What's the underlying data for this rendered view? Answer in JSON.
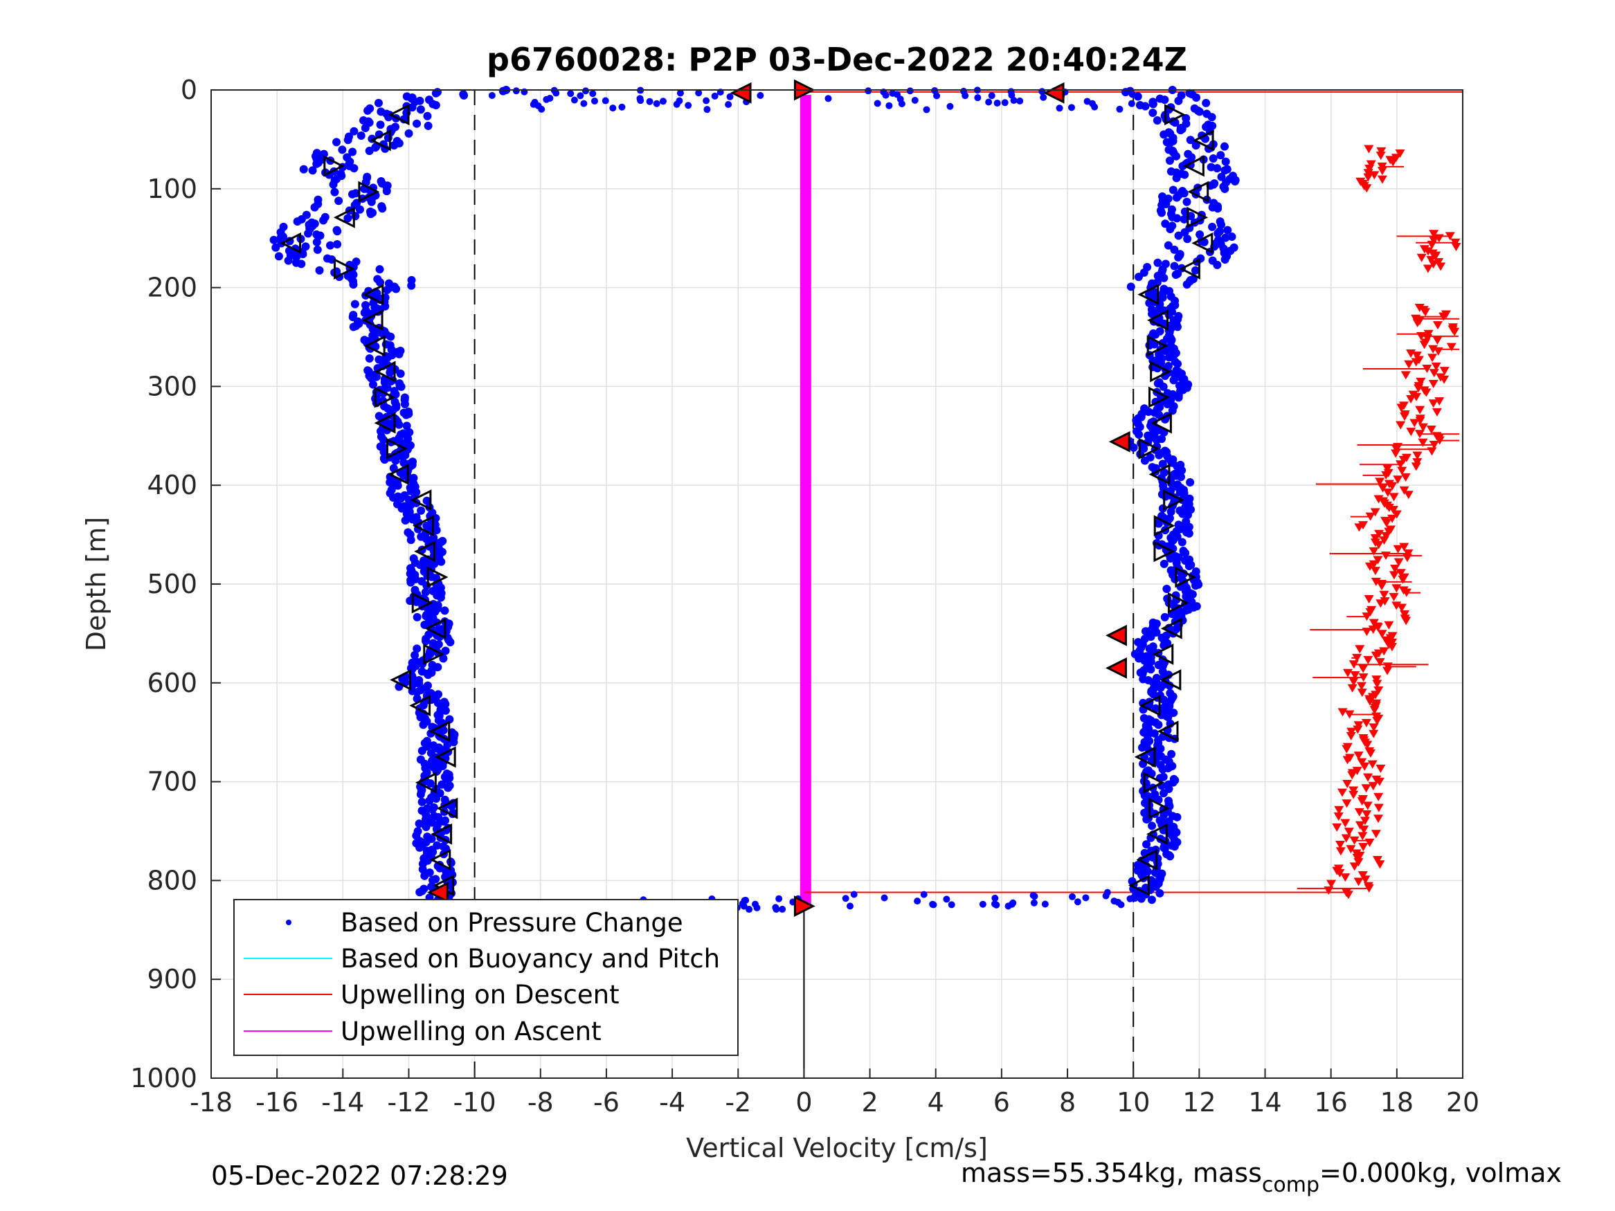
{
  "chart_data": {
    "type": "scatter",
    "title": "p6760028: P2P 03-Dec-2022 20:40:24Z",
    "xlabel": "Vertical Velocity [cm/s]",
    "ylabel": "Depth [m]",
    "xlim": [
      -18,
      20
    ],
    "ylim": [
      1000,
      0
    ],
    "y_reversed": true,
    "grid": true,
    "xticks": [
      "-18",
      "-16",
      "-14",
      "-12",
      "-10",
      "-8",
      "-6",
      "-4",
      "-2",
      "0",
      "2",
      "4",
      "6",
      "8",
      "10",
      "12",
      "14",
      "16",
      "18",
      "20"
    ],
    "yticks": [
      "0",
      "100",
      "200",
      "300",
      "400",
      "500",
      "600",
      "700",
      "800",
      "900",
      "1000"
    ],
    "reference_lines": {
      "dashed_x": [
        -10,
        10
      ],
      "solid_x": [
        0
      ]
    },
    "legend": {
      "placement": "bottom-left",
      "entries": [
        {
          "label": "Based on Pressure Change",
          "style": "dot",
          "color": "#0000ff"
        },
        {
          "label": "Based on Buoyancy and Pitch",
          "style": "line",
          "color": "#00ffff"
        },
        {
          "label": "Upwelling on Descent",
          "style": "line",
          "color": "#ff0000"
        },
        {
          "label": "Upwelling on Ascent",
          "style": "line",
          "color": "#ff00ff"
        }
      ]
    },
    "colors": {
      "pressure": "#0000ff",
      "descent": "#ff0000",
      "ascent": "#ff00ff",
      "grid": "#e0e0e0"
    },
    "series": [
      {
        "name": "Based on Pressure Change",
        "descent_profile": [
          [
            0,
            -9.5
          ],
          [
            10,
            -12
          ],
          [
            20,
            -12.5
          ],
          [
            40,
            -12.5
          ],
          [
            60,
            -13.5
          ],
          [
            80,
            -14.5
          ],
          [
            100,
            -13.5
          ],
          [
            120,
            -13.8
          ],
          [
            140,
            -14.8
          ],
          [
            160,
            -15.3
          ],
          [
            175,
            -14.5
          ],
          [
            190,
            -13
          ],
          [
            200,
            -12.8
          ],
          [
            220,
            -13.2
          ],
          [
            240,
            -13.2
          ],
          [
            260,
            -12.7
          ],
          [
            280,
            -12.8
          ],
          [
            300,
            -12.6
          ],
          [
            320,
            -12.5
          ],
          [
            340,
            -12.4
          ],
          [
            360,
            -12.4
          ],
          [
            380,
            -12.3
          ],
          [
            400,
            -12.2
          ],
          [
            430,
            -11.7
          ],
          [
            460,
            -11.4
          ],
          [
            490,
            -11.5
          ],
          [
            520,
            -11.5
          ],
          [
            550,
            -11.0
          ],
          [
            580,
            -11.5
          ],
          [
            600,
            -12.0
          ],
          [
            620,
            -11.3
          ],
          [
            650,
            -11.0
          ],
          [
            680,
            -11.3
          ],
          [
            700,
            -11.2
          ],
          [
            720,
            -11.1
          ],
          [
            740,
            -11.2
          ],
          [
            760,
            -11.3
          ],
          [
            780,
            -11.2
          ],
          [
            800,
            -11.1
          ],
          [
            815,
            -11.2
          ]
        ],
        "ascent_profile": [
          [
            0,
            10.5
          ],
          [
            20,
            11.5
          ],
          [
            40,
            12
          ],
          [
            60,
            11.8
          ],
          [
            80,
            12.2
          ],
          [
            100,
            12
          ],
          [
            120,
            11.5
          ],
          [
            140,
            12.2
          ],
          [
            160,
            12
          ],
          [
            180,
            11.5
          ],
          [
            200,
            10.8
          ],
          [
            220,
            10.8
          ],
          [
            240,
            11.0
          ],
          [
            260,
            10.8
          ],
          [
            280,
            11.0
          ],
          [
            300,
            11.2
          ],
          [
            320,
            10.8
          ],
          [
            340,
            10.5
          ],
          [
            360,
            10.3
          ],
          [
            380,
            11.0
          ],
          [
            400,
            11.3
          ],
          [
            430,
            11.3
          ],
          [
            460,
            11.2
          ],
          [
            490,
            11.5
          ],
          [
            520,
            11.5
          ],
          [
            540,
            11.0
          ],
          [
            560,
            10.6
          ],
          [
            580,
            10.5
          ],
          [
            600,
            10.8
          ],
          [
            620,
            10.7
          ],
          [
            650,
            10.8
          ],
          [
            680,
            10.7
          ],
          [
            700,
            10.8
          ],
          [
            720,
            10.7
          ],
          [
            740,
            10.9
          ],
          [
            760,
            10.9
          ],
          [
            780,
            10.6
          ],
          [
            800,
            10.3
          ],
          [
            815,
            10.5
          ]
        ]
      },
      {
        "name": "Upwelling on Descent",
        "profile": [
          [
            65,
            17.8
          ],
          [
            80,
            17.2
          ],
          [
            90,
            17.0
          ],
          [
            150,
            19.2
          ],
          [
            160,
            19.3
          ],
          [
            170,
            19.1
          ],
          [
            230,
            19.0
          ],
          [
            250,
            19.3
          ],
          [
            270,
            19.0
          ],
          [
            300,
            18.8
          ],
          [
            320,
            18.6
          ],
          [
            350,
            18.8
          ],
          [
            380,
            18.2
          ],
          [
            400,
            18.0
          ],
          [
            420,
            17.5
          ],
          [
            440,
            17.3
          ],
          [
            460,
            17.8
          ],
          [
            480,
            17.8
          ],
          [
            500,
            17.9
          ],
          [
            520,
            17.6
          ],
          [
            540,
            17.7
          ],
          [
            560,
            17.5
          ],
          [
            580,
            17.3
          ],
          [
            600,
            17.0
          ],
          [
            620,
            16.9
          ],
          [
            640,
            17.0
          ],
          [
            660,
            16.9
          ],
          [
            680,
            17.1
          ],
          [
            700,
            17.0
          ],
          [
            720,
            16.9
          ],
          [
            740,
            16.8
          ],
          [
            760,
            16.8
          ],
          [
            780,
            16.9
          ],
          [
            800,
            16.7
          ],
          [
            812,
            16.5
          ]
        ]
      },
      {
        "name": "Upwelling on Ascent",
        "profile": [
          [
            5,
            0.05
          ],
          [
            825,
            0.05
          ]
        ]
      }
    ]
  },
  "footer": {
    "timestamp": "05-Dec-2022 07:28:29",
    "mass_prefix": "mass=55.354kg, mass",
    "mass_sub": "comp",
    "mass_suffix": "=0.000kg, volmax"
  }
}
